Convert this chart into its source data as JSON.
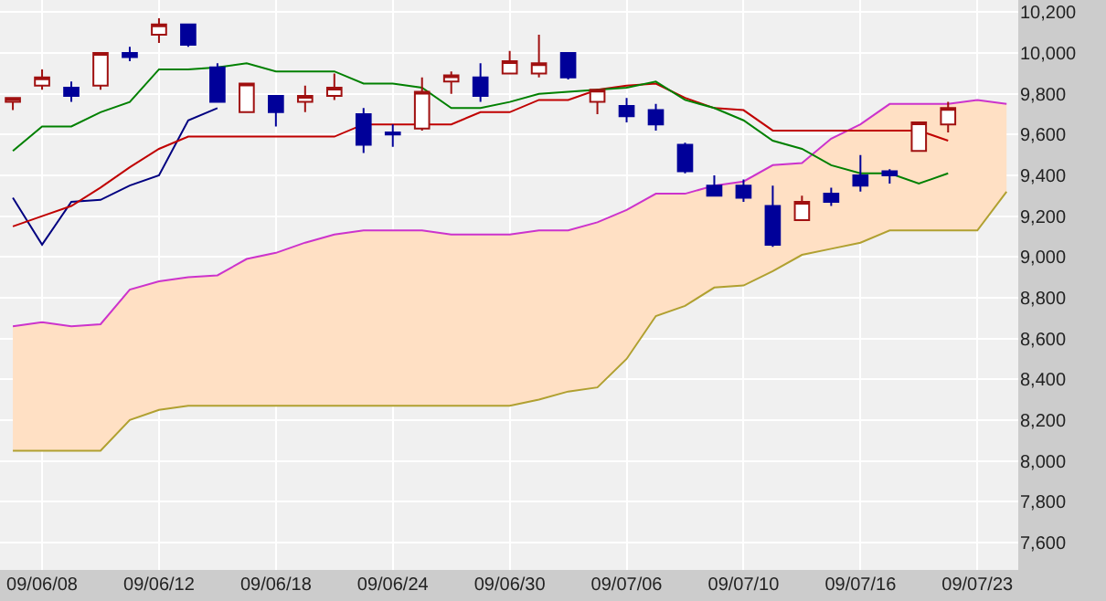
{
  "chart_data": {
    "type": "candlestick",
    "categories": [
      null,
      "09/06/08",
      null,
      null,
      null,
      "09/06/12",
      null,
      null,
      null,
      "09/06/18",
      null,
      null,
      null,
      "09/06/24",
      null,
      null,
      null,
      "09/06/30",
      null,
      null,
      null,
      "09/07/06",
      null,
      null,
      null,
      "09/07/10",
      null,
      null,
      null,
      "09/07/16",
      null,
      null,
      null,
      "09/07/23",
      null
    ],
    "ohlc": [
      [
        9760,
        9780,
        9720,
        9780
      ],
      [
        9840,
        9920,
        9820,
        9880
      ],
      [
        9830,
        9860,
        9760,
        9790
      ],
      [
        9840,
        10000,
        9820,
        10000
      ],
      [
        10000,
        10030,
        9960,
        9980
      ],
      [
        10090,
        10170,
        10050,
        10140
      ],
      [
        10140,
        10140,
        10030,
        10040
      ],
      [
        9930,
        9950,
        9760,
        9760
      ],
      [
        9710,
        9850,
        9710,
        9850
      ],
      [
        9790,
        9790,
        9640,
        9710
      ],
      [
        9760,
        9840,
        9710,
        9790
      ],
      [
        9790,
        9900,
        9770,
        9830
      ],
      [
        9700,
        9730,
        9510,
        9550
      ],
      [
        9610,
        9650,
        9540,
        9600
      ],
      [
        9630,
        9880,
        9620,
        9810
      ],
      [
        9860,
        9910,
        9800,
        9890
      ],
      [
        9880,
        9950,
        9760,
        9790
      ],
      [
        9900,
        10010,
        9900,
        9960
      ],
      [
        9900,
        10090,
        9880,
        9950
      ],
      [
        10000,
        10000,
        9870,
        9880
      ],
      [
        9760,
        9820,
        9700,
        9820
      ],
      [
        9740,
        9780,
        9660,
        9690
      ],
      [
        9720,
        9750,
        9620,
        9650
      ],
      [
        9550,
        9560,
        9410,
        9420
      ],
      [
        9350,
        9400,
        9300,
        9300
      ],
      [
        9350,
        9380,
        9270,
        9290
      ],
      [
        9250,
        9350,
        9050,
        9060
      ],
      [
        9180,
        9300,
        9180,
        9270
      ],
      [
        9310,
        9340,
        9250,
        9270
      ],
      [
        9400,
        9500,
        9320,
        9350
      ],
      [
        9420,
        9430,
        9360,
        9400
      ],
      [
        9520,
        9660,
        9520,
        9660
      ],
      [
        9650,
        9760,
        9610,
        9730
      ],
      null,
      null
    ],
    "series": [
      {
        "type": "line",
        "color": "#b0a030",
        "values": [
          8050,
          8050,
          8050,
          8050,
          8200,
          8250,
          8270,
          8270,
          8270,
          8270,
          8270,
          8270,
          8270,
          8270,
          8270,
          8270,
          8270,
          8270,
          8300,
          8340,
          8360,
          8500,
          8710,
          8760,
          8850,
          8860,
          8930,
          9010,
          9040,
          9070,
          9130,
          9130,
          9130,
          9130,
          9320
        ]
      },
      {
        "type": "area",
        "color": "#ffe0c4",
        "values": [
          8660,
          8680,
          8660,
          8670,
          8840,
          8880,
          8900,
          8910,
          8990,
          9020,
          9070,
          9110,
          9130,
          9130,
          9130,
          9110,
          9110,
          9110,
          9130,
          9130,
          9170,
          9230,
          9310,
          9310,
          9350,
          9370,
          9450,
          9460,
          9580,
          9650,
          9750,
          9750,
          9750,
          9770,
          9750
        ]
      },
      {
        "type": "line",
        "color": "#cc33cc",
        "values": [
          8660,
          8680,
          8660,
          8670,
          8840,
          8880,
          8900,
          8910,
          8990,
          9020,
          9070,
          9110,
          9130,
          9130,
          9130,
          9110,
          9110,
          9110,
          9130,
          9130,
          9170,
          9230,
          9310,
          9310,
          9350,
          9370,
          9450,
          9460,
          9580,
          9650,
          9750,
          9750,
          9750,
          9770,
          9750
        ]
      },
      {
        "type": "line",
        "color": "#000080",
        "values": [
          9290,
          9060,
          9270,
          9280,
          9350,
          9400,
          9670,
          9730,
          null,
          null,
          null,
          null,
          null,
          null,
          null,
          null,
          null,
          null,
          null,
          null,
          null,
          null,
          null,
          null,
          null,
          null,
          null,
          null,
          null,
          null,
          null,
          null,
          null,
          null,
          null
        ]
      },
      {
        "type": "line",
        "color": "#c00000",
        "values": [
          9150,
          9200,
          9250,
          9340,
          9440,
          9530,
          9590,
          9590,
          9590,
          9590,
          9590,
          9590,
          9650,
          9650,
          9650,
          9650,
          9710,
          9710,
          9770,
          9770,
          9820,
          9840,
          9850,
          9780,
          9730,
          9720,
          9620,
          9620,
          9620,
          9620,
          9620,
          9620,
          9570,
          null,
          null
        ]
      },
      {
        "type": "line",
        "color": "#008000",
        "values": [
          9520,
          9640,
          9640,
          9710,
          9760,
          9920,
          9920,
          9930,
          9950,
          9910,
          9910,
          9910,
          9850,
          9850,
          9830,
          9730,
          9730,
          9760,
          9800,
          9810,
          9820,
          9830,
          9860,
          9770,
          9730,
          9670,
          9570,
          9530,
          9450,
          9410,
          9410,
          9360,
          9410,
          null,
          null
        ]
      }
    ],
    "ylim": [
      7465,
      10260
    ],
    "yticks": [
      {
        "value": 7600,
        "label": "7,600"
      },
      {
        "value": 7800,
        "label": "7,800"
      },
      {
        "value": 8000,
        "label": "8,000"
      },
      {
        "value": 8200,
        "label": "8,200"
      },
      {
        "value": 8400,
        "label": "8,400"
      },
      {
        "value": 8600,
        "label": "8,600"
      },
      {
        "value": 8800,
        "label": "8,800"
      },
      {
        "value": 9000,
        "label": "9,000"
      },
      {
        "value": 9200,
        "label": "9,200"
      },
      {
        "value": 9400,
        "label": "9,400"
      },
      {
        "value": 9600,
        "label": "9,600"
      },
      {
        "value": 9800,
        "label": "9,800"
      },
      {
        "value": 10000,
        "label": "10,000"
      },
      {
        "value": 10200,
        "label": "10,200"
      }
    ],
    "grid": true,
    "line_style": "solid",
    "marker": "none"
  }
}
